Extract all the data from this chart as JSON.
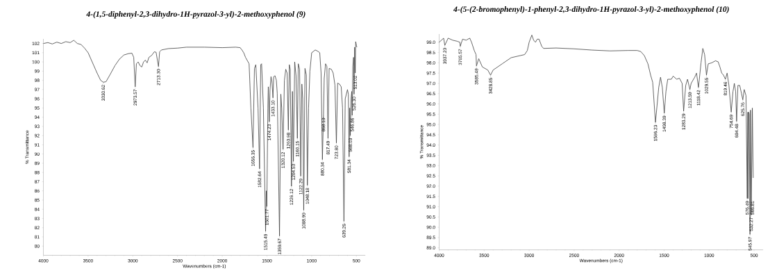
{
  "chart_data": [
    {
      "type": "line",
      "title": "4-(1,5-diphenyl-2,3-dihydro-1H-pyrazol-3-yl)-2-methoxyphenol (9)",
      "xlabel": "Wavenumbers (cm-1)",
      "ylabel": "% Transmittance",
      "color": "#404040",
      "marker": "none",
      "x": [
        4000,
        3950,
        3900,
        3850,
        3800,
        3750,
        3700,
        3660,
        3620,
        3580,
        3540,
        3500,
        3450,
        3400,
        3360,
        3330.62,
        3300,
        3250,
        3200,
        3150,
        3100,
        3050,
        3010,
        2990,
        2973.57,
        2960,
        2940,
        2920,
        2900,
        2880,
        2860,
        2840,
        2820,
        2790,
        2760,
        2740,
        2713.3,
        2700,
        2680,
        2600,
        2500,
        2400,
        2200,
        2000,
        1850,
        1800,
        1780,
        1760,
        1740,
        1700,
        1680,
        1656.35,
        1640,
        1625,
        1600,
        1582.64,
        1570,
        1560,
        1540,
        1515.49,
        1508,
        1501.77,
        1490,
        1485,
        1474.23,
        1466,
        1455,
        1445,
        1433.1,
        1425,
        1410,
        1395,
        1385,
        1359.67,
        1345,
        1335,
        1320.12,
        1305,
        1290,
        1275,
        1260.98,
        1250,
        1240,
        1226.12,
        1215,
        1204.53,
        1190,
        1175,
        1160.15,
        1150,
        1135,
        1122.29,
        1110,
        1100,
        1088.99,
        1075,
        1060,
        1048.18,
        1035,
        1020,
        1000,
        960,
        930,
        910,
        895,
        880.34,
        868.1,
        860,
        845,
        830,
        817.49,
        805,
        780,
        760,
        740,
        723.8,
        710,
        690,
        670,
        655,
        639.26,
        625,
        600,
        590,
        581.34,
        575,
        568.03,
        560,
        552,
        546.86,
        540,
        532,
        526.3,
        520,
        513.02,
        508,
        500,
        495
      ],
      "values": [
        102.0,
        102.1,
        101.95,
        102.15,
        102.0,
        102.2,
        102.1,
        102.35,
        102.0,
        101.9,
        101.5,
        101.0,
        99.9,
        98.8,
        98.0,
        97.8,
        97.85,
        98.7,
        99.6,
        100.3,
        100.75,
        100.9,
        100.95,
        100.5,
        97.3,
        99.8,
        100.0,
        99.6,
        99.45,
        100.0,
        100.2,
        99.9,
        100.5,
        100.7,
        101.1,
        101.05,
        99.5,
        101.1,
        101.3,
        101.45,
        101.5,
        101.6,
        101.6,
        101.55,
        101.6,
        101.55,
        101.3,
        101.0,
        100.5,
        99.8,
        95.0,
        90.7,
        99.3,
        99.7,
        95.0,
        88.4,
        99.7,
        99.8,
        95.0,
        81.6,
        86.0,
        84.3,
        95.0,
        97.3,
        93.5,
        97.0,
        98.4,
        97.9,
        96.1,
        98.4,
        98.5,
        98.0,
        96.6,
        81.1,
        96.5,
        95.0,
        90.5,
        98.0,
        99.2,
        98.8,
        92.6,
        99.7,
        99.2,
        86.5,
        96.8,
        89.2,
        100.0,
        98.5,
        91.7,
        99.8,
        99.2,
        87.6,
        97.6,
        96.0,
        83.9,
        99.3,
        98.6,
        86.6,
        95.0,
        99.0,
        101.0,
        101.3,
        101.15,
        101.0,
        98.8,
        89.4,
        94.2,
        98.2,
        99.8,
        99.5,
        91.7,
        99.3,
        99.2,
        98.8,
        97.5,
        91.2,
        97.7,
        97.6,
        97.3,
        95.0,
        82.7,
        96.0,
        97.0,
        96.5,
        89.7,
        95.0,
        92.0,
        96.0,
        96.8,
        94.2,
        99.5,
        100.5,
        96.5,
        101.6,
        98.8,
        102.2,
        101.8,
        101.6
      ],
      "xlim": [
        4000,
        400
      ],
      "ylim": [
        79,
        102.5
      ],
      "xticks": [
        4000,
        3500,
        3000,
        2500,
        2000,
        1500,
        1000,
        500
      ],
      "yticks": [
        80,
        81,
        82,
        83,
        84,
        85,
        86,
        87,
        88,
        89,
        90,
        91,
        92,
        93,
        94,
        95,
        96,
        97,
        98,
        99,
        100,
        101,
        102
      ],
      "annotations": [
        {
          "text": "3330.62",
          "x": 3330.62,
          "y": 97.8
        },
        {
          "text": "2973.57",
          "x": 2973.57,
          "y": 97.3
        },
        {
          "text": "2713.30",
          "x": 2713.3,
          "y": 99.5
        },
        {
          "text": "1656.35",
          "x": 1656.35,
          "y": 90.7
        },
        {
          "text": "1582.64",
          "x": 1582.64,
          "y": 88.4
        },
        {
          "text": "1515.49",
          "x": 1515.49,
          "y": 81.6
        },
        {
          "text": "1501.77",
          "x": 1501.77,
          "y": 84.3
        },
        {
          "text": "1474.23",
          "x": 1474.23,
          "y": 93.5
        },
        {
          "text": "1433.10",
          "x": 1433.1,
          "y": 96.1
        },
        {
          "text": "1359.67",
          "x": 1359.67,
          "y": 81.1
        },
        {
          "text": "1320.12",
          "x": 1320.12,
          "y": 90.5
        },
        {
          "text": "1260.98",
          "x": 1260.98,
          "y": 92.6
        },
        {
          "text": "1226.12",
          "x": 1226.12,
          "y": 86.5
        },
        {
          "text": "1204.53",
          "x": 1204.53,
          "y": 89.2
        },
        {
          "text": "1160.15",
          "x": 1160.15,
          "y": 91.7
        },
        {
          "text": "1122.29",
          "x": 1122.29,
          "y": 87.6
        },
        {
          "text": "1088.99",
          "x": 1088.99,
          "y": 83.9
        },
        {
          "text": "1048.18",
          "x": 1048.18,
          "y": 86.6
        },
        {
          "text": "880.34",
          "x": 880.34,
          "y": 89.4
        },
        {
          "text": "868.10",
          "x": 868.1,
          "y": 94.2
        },
        {
          "text": "817.49",
          "x": 817.49,
          "y": 91.7
        },
        {
          "text": "723.80",
          "x": 723.8,
          "y": 91.2
        },
        {
          "text": "639.26",
          "x": 639.26,
          "y": 82.7
        },
        {
          "text": "581.34",
          "x": 581.34,
          "y": 89.7
        },
        {
          "text": "568.03",
          "x": 568.03,
          "y": 92.0
        },
        {
          "text": "546.86",
          "x": 546.86,
          "y": 94.2
        },
        {
          "text": "526.30",
          "x": 526.3,
          "y": 96.5
        },
        {
          "text": "513.02",
          "x": 513.02,
          "y": 98.8
        }
      ]
    },
    {
      "type": "line",
      "title": "4-(5-(2-bromophenyl)-1-phenyl-2,3-dihydro-1H-pyrazol-3-yl)-2-methoxyphenol (10)",
      "xlabel": "Wavenumbers (cm-1)",
      "ylabel": "% Transmittance",
      "color": "#404040",
      "marker": "none",
      "x": [
        4000,
        3950,
        3937.2,
        3900,
        3850,
        3800,
        3770,
        3765.57,
        3740,
        3700,
        3660,
        3640,
        3610,
        3590,
        3585.49,
        3560,
        3520,
        3460,
        3428.85,
        3400,
        3300,
        3200,
        3100,
        3050,
        3020,
        3000,
        2970,
        2950,
        2930,
        2910,
        2890,
        2860,
        2840,
        2700,
        2500,
        2300,
        2100,
        1900,
        1800,
        1760,
        1720,
        1680,
        1650,
        1627,
        1596.23,
        1560,
        1540,
        1520,
        1498.39,
        1480,
        1460,
        1420,
        1400,
        1360,
        1330,
        1300,
        1283.29,
        1260,
        1240,
        1213.59,
        1200,
        1160,
        1140,
        1118.42,
        1090,
        1070,
        1050,
        1029.55,
        1010,
        970,
        930,
        900,
        880,
        860,
        840,
        819.46,
        800,
        780,
        754.69,
        735,
        720,
        705,
        694.48,
        680,
        660,
        640,
        625.76,
        610,
        590,
        576.49,
        570,
        566.81,
        560,
        555,
        545.97,
        540,
        532.27,
        520,
        510
      ],
      "values": [
        99.0,
        99.2,
        98.85,
        99.2,
        99.1,
        99.05,
        99.0,
        98.8,
        99.15,
        99.1,
        99.2,
        99.0,
        98.6,
        98.4,
        97.85,
        98.2,
        97.8,
        97.65,
        97.4,
        97.65,
        97.95,
        98.25,
        98.35,
        98.4,
        98.6,
        99.0,
        99.35,
        99.1,
        99.0,
        99.15,
        99.15,
        98.8,
        98.7,
        98.72,
        98.68,
        98.62,
        98.58,
        98.6,
        98.6,
        98.55,
        98.35,
        97.95,
        97.4,
        97.05,
        95.1,
        96.8,
        97.3,
        96.8,
        95.55,
        96.6,
        97.2,
        97.2,
        97.35,
        97.2,
        97.25,
        97.0,
        95.65,
        96.9,
        97.2,
        96.7,
        97.0,
        97.3,
        97.5,
        96.8,
        98.0,
        98.7,
        98.4,
        97.4,
        97.95,
        98.0,
        98.1,
        98.05,
        97.8,
        97.5,
        97.4,
        97.2,
        97.5,
        96.9,
        95.6,
        96.6,
        97.0,
        96.6,
        95.15,
        96.9,
        96.9,
        96.5,
        96.2,
        96.7,
        96.4,
        91.4,
        95.6,
        91.4,
        95.6,
        95.5,
        89.65,
        95.7,
        90.6,
        95.8,
        92.4
      ],
      "xlim": [
        4000,
        400
      ],
      "ylim": [
        88.9,
        99.4
      ],
      "xticks": [
        4000,
        3500,
        3000,
        2500,
        2000,
        1500,
        1000,
        500
      ],
      "yticks": [
        {
          "value": 89,
          "label": "89.0"
        },
        {
          "value": 89.5,
          "label": "89.5"
        },
        {
          "value": 90,
          "label": "90.0"
        },
        {
          "value": 90.5,
          "label": "90.5"
        },
        {
          "value": 91,
          "label": "91.0"
        },
        {
          "value": 91.5,
          "label": "91.5"
        },
        {
          "value": 92,
          "label": "92.0"
        },
        {
          "value": 92.5,
          "label": "92.5"
        },
        {
          "value": 93,
          "label": "93.0"
        },
        {
          "value": 93.5,
          "label": "93.5"
        },
        {
          "value": 94,
          "label": "94.0"
        },
        {
          "value": 94.5,
          "label": "94.5"
        },
        {
          "value": 95,
          "label": "95.0"
        },
        {
          "value": 95.5,
          "label": "95.5"
        },
        {
          "value": 96,
          "label": "96.0"
        },
        {
          "value": 96.5,
          "label": "96.5"
        },
        {
          "value": 97,
          "label": "97.0"
        },
        {
          "value": 97.5,
          "label": "97.5"
        },
        {
          "value": 98,
          "label": "98.0"
        },
        {
          "value": 98.5,
          "label": "98.5"
        },
        {
          "value": 99,
          "label": "99.0"
        }
      ],
      "annotations": [
        {
          "text": "3937.20",
          "x": 3937.2,
          "y": 98.85
        },
        {
          "text": "3765.57",
          "x": 3765.57,
          "y": 98.8
        },
        {
          "text": "3585.49",
          "x": 3585.49,
          "y": 97.85
        },
        {
          "text": "3428.85",
          "x": 3428.85,
          "y": 97.4
        },
        {
          "text": "1596.23",
          "x": 1596.23,
          "y": 95.1
        },
        {
          "text": "1498.39",
          "x": 1498.39,
          "y": 95.55
        },
        {
          "text": "1283.29",
          "x": 1283.29,
          "y": 95.65
        },
        {
          "text": "1213.59",
          "x": 1213.59,
          "y": 96.7
        },
        {
          "text": "1118.42",
          "x": 1118.42,
          "y": 96.8
        },
        {
          "text": "1029.55",
          "x": 1029.55,
          "y": 97.4
        },
        {
          "text": "819.46",
          "x": 819.46,
          "y": 97.2
        },
        {
          "text": "754.69",
          "x": 754.69,
          "y": 95.6
        },
        {
          "text": "694.48",
          "x": 694.48,
          "y": 95.15
        },
        {
          "text": "625.76",
          "x": 625.76,
          "y": 96.2
        },
        {
          "text": "576.49",
          "x": 576.49,
          "y": 91.4
        },
        {
          "text": "566.81",
          "x": 566.81,
          "y": 91.4
        },
        {
          "text": "545.97",
          "x": 545.97,
          "y": 89.65
        },
        {
          "text": "532.27",
          "x": 532.27,
          "y": 90.6
        }
      ]
    }
  ]
}
